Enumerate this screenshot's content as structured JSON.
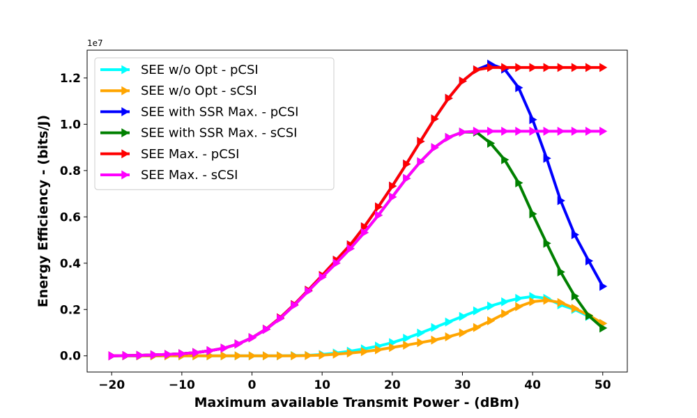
{
  "chart_data": {
    "type": "line",
    "title": "",
    "xlabel": "Maximum available Transmit Power - (dBm)",
    "ylabel": "Energy Efficiency - (bits/J)",
    "y_offset_text": "1e7",
    "y_scale": 10000000,
    "xlim": [
      -23.5,
      53.5
    ],
    "ylim": [
      -700000,
      13200000
    ],
    "xticks": [
      -20,
      -10,
      0,
      10,
      20,
      30,
      40,
      50
    ],
    "xtick_labels": [
      "−20",
      "−10",
      "0",
      "10",
      "20",
      "30",
      "40",
      "50"
    ],
    "yticks": [
      0,
      2000000,
      4000000,
      6000000,
      8000000,
      10000000,
      12000000
    ],
    "ytick_labels": [
      "0.0",
      "0.2",
      "0.4",
      "0.6",
      "0.8",
      "1.0",
      "1.2"
    ],
    "grid": false,
    "legend_position": "upper-left",
    "marker": "right-triangle",
    "x": [
      -20,
      -18,
      -16,
      -14,
      -12,
      -10,
      -8,
      -6,
      -4,
      -2,
      0,
      2,
      4,
      6,
      8,
      10,
      12,
      14,
      16,
      18,
      20,
      22,
      24,
      26,
      28,
      30,
      32,
      34,
      36,
      38,
      40,
      42,
      44,
      46,
      48,
      50
    ],
    "series": [
      {
        "name": "SEE w/o Opt - pCSI",
        "color": "#00ffff",
        "values": [
          0,
          0,
          0,
          0,
          0,
          0,
          0,
          0,
          0,
          0,
          0,
          0,
          0,
          10000,
          20000,
          60000,
          120000,
          200000,
          300000,
          420000,
          570000,
          760000,
          980000,
          1220000,
          1460000,
          1700000,
          1940000,
          2150000,
          2330000,
          2480000,
          2560000,
          2480000,
          2200000,
          2000000,
          1700000,
          1400000
        ]
      },
      {
        "name": "SEE w/o Opt - sCSI",
        "color": "#ffa500",
        "values": [
          0,
          0,
          0,
          0,
          0,
          0,
          0,
          0,
          0,
          0,
          0,
          0,
          0,
          0,
          10000,
          30000,
          70000,
          120000,
          180000,
          260000,
          360000,
          460000,
          570000,
          680000,
          820000,
          990000,
          1220000,
          1510000,
          1820000,
          2120000,
          2340000,
          2400000,
          2300000,
          2050000,
          1750000,
          1400000
        ]
      },
      {
        "name": "SEE with SSR Max. - pCSI",
        "color": "#0000ff",
        "values": [
          0,
          10000,
          20000,
          40000,
          60000,
          90000,
          140000,
          220000,
          330000,
          510000,
          780000,
          1150000,
          1640000,
          2210000,
          2830000,
          3470000,
          4130000,
          4790000,
          5570000,
          6430000,
          7330000,
          8280000,
          9260000,
          10230000,
          11120000,
          11860000,
          12350000,
          12600000,
          12380000,
          11580000,
          10200000,
          8530000,
          6700000,
          5230000,
          4100000,
          3000000
        ]
      },
      {
        "name": "SEE with SSR Max. - sCSI",
        "color": "#008000",
        "values": [
          0,
          10000,
          20000,
          40000,
          60000,
          90000,
          140000,
          220000,
          330000,
          510000,
          780000,
          1140000,
          1610000,
          2180000,
          2790000,
          3400000,
          4000000,
          4630000,
          5320000,
          6070000,
          6860000,
          7660000,
          8380000,
          8990000,
          9430000,
          9660000,
          9660000,
          9180000,
          8470000,
          7470000,
          6130000,
          4860000,
          3620000,
          2580000,
          1730000,
          1200000
        ]
      },
      {
        "name": "SEE Max. - pCSI",
        "color": "#ff0000",
        "values": [
          0,
          10000,
          20000,
          40000,
          60000,
          90000,
          140000,
          220000,
          330000,
          510000,
          780000,
          1150000,
          1640000,
          2210000,
          2830000,
          3470000,
          4130000,
          4790000,
          5570000,
          6430000,
          7330000,
          8280000,
          9260000,
          10230000,
          11120000,
          11860000,
          12350000,
          12450000,
          12450000,
          12450000,
          12450000,
          12450000,
          12450000,
          12450000,
          12450000,
          12450000
        ]
      },
      {
        "name": "SEE Max. - sCSI",
        "color": "#ff00ff",
        "values": [
          0,
          10000,
          20000,
          40000,
          60000,
          90000,
          140000,
          220000,
          330000,
          510000,
          780000,
          1140000,
          1610000,
          2180000,
          2790000,
          3400000,
          4000000,
          4630000,
          5320000,
          6070000,
          6860000,
          7660000,
          8380000,
          8990000,
          9430000,
          9660000,
          9700000,
          9700000,
          9700000,
          9700000,
          9700000,
          9700000,
          9700000,
          9700000,
          9700000,
          9700000
        ]
      }
    ]
  }
}
